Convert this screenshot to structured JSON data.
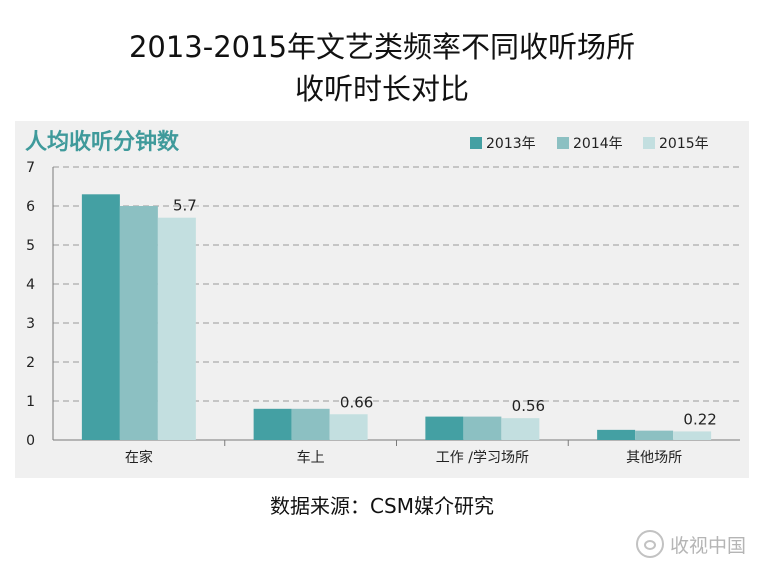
{
  "title_line1": "2013-2015年文艺类频率不同收听场所",
  "title_line2": "收听时长对比",
  "source": "数据来源：CSM媒介研究",
  "watermark": "收视中国",
  "chart_data": {
    "type": "bar",
    "title": "人均收听分钟数",
    "categories": [
      "在家",
      "车上",
      "工作 /学习场所",
      "其他场所"
    ],
    "series": [
      {
        "name": "2013年",
        "values": [
          6.3,
          0.8,
          0.6,
          0.26
        ],
        "color": "#44a0a3"
      },
      {
        "name": "2014年",
        "values": [
          6.0,
          0.8,
          0.6,
          0.24
        ],
        "color": "#8cc0c2"
      },
      {
        "name": "2015年",
        "values": [
          5.7,
          0.66,
          0.56,
          0.22
        ],
        "color": "#c3dfe0"
      }
    ],
    "data_labels": {
      "series": "2015年",
      "labels": [
        "5.7",
        "0.66",
        "0.56",
        "0.22"
      ]
    },
    "ylim": [
      0,
      7
    ],
    "yticks": [
      "0",
      "1",
      "2",
      "3",
      "4",
      "5",
      "6",
      "7"
    ],
    "grid": true,
    "legend": "top-right",
    "title_color": "#3f9a9b"
  }
}
